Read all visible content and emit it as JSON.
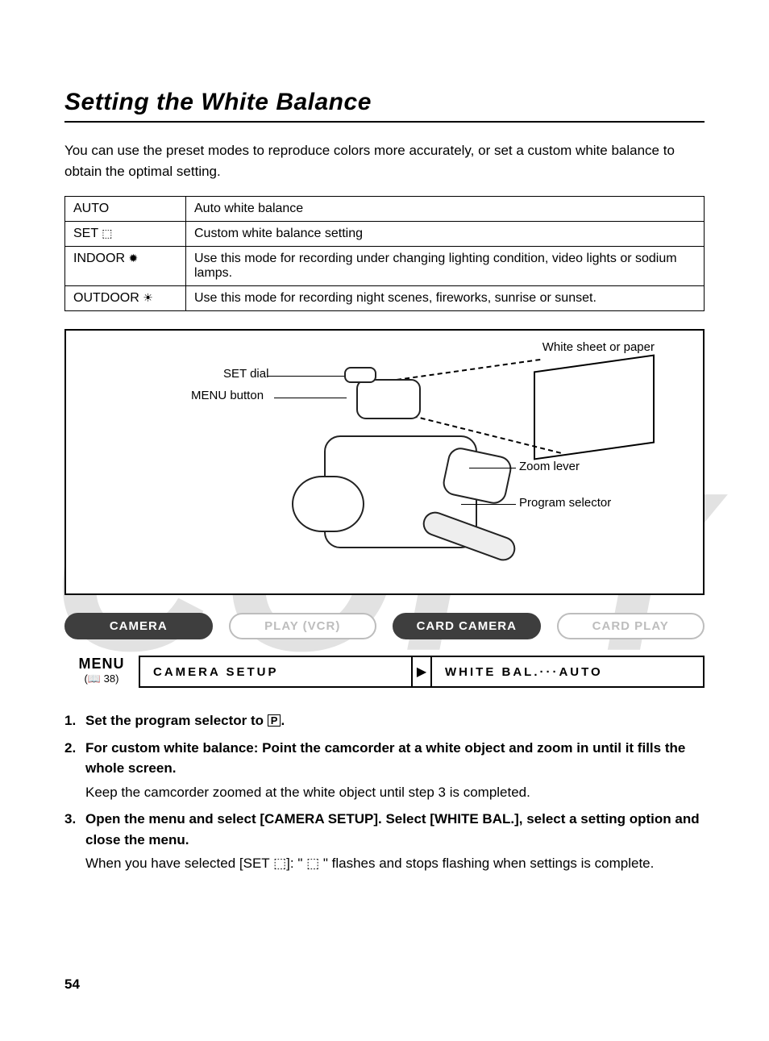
{
  "title": "Setting the White Balance",
  "intro": "You can use the preset modes to reproduce colors more accurately, or set a custom white balance to obtain the optimal setting.",
  "watermark": "COPY",
  "page_number": "54",
  "modes_table": {
    "rows": [
      {
        "label": "AUTO",
        "icon": "",
        "desc": "Auto white balance"
      },
      {
        "label": "SET",
        "icon": "⬚",
        "desc": "Custom white balance setting"
      },
      {
        "label": "INDOOR",
        "icon": "✹",
        "desc": "Use this mode for recording under changing lighting condition, video lights or sodium lamps."
      },
      {
        "label": "OUTDOOR",
        "icon": "☀",
        "desc": "Use this mode for recording night scenes, fireworks, sunrise or sunset."
      }
    ]
  },
  "illustration": {
    "labels": {
      "set_dial": "SET dial",
      "menu_button": "MENU button",
      "white_sheet": "White sheet or paper",
      "zoom_lever": "Zoom lever",
      "program_selector": "Program selector"
    }
  },
  "mode_pills": [
    {
      "text": "CAMERA",
      "variant": "dark"
    },
    {
      "text": "PLAY (VCR)",
      "variant": "light"
    },
    {
      "text": "CARD CAMERA",
      "variant": "dark"
    },
    {
      "text": "CARD PLAY",
      "variant": "light"
    }
  ],
  "menu_bar": {
    "menu_word": "MENU",
    "menu_ref": "(📖 38)",
    "left": "CAMERA SETUP",
    "right": "WHITE BAL.···AUTO"
  },
  "steps": [
    {
      "head_pre": "Set the program selector to ",
      "head_icon": "P",
      "head_post": ".",
      "sub": ""
    },
    {
      "head_pre": "For custom white balance: Point the camcorder at a white object and zoom in until it fills the whole screen.",
      "head_icon": "",
      "head_post": "",
      "sub": "Keep the camcorder zoomed at the white object until step 3 is completed."
    },
    {
      "head_pre": "Open the menu and select [CAMERA SETUP]. Select [WHITE BAL.], select a setting option and close the menu.",
      "head_icon": "",
      "head_post": "",
      "sub": "When you have selected [SET ⬚]: \" ⬚ \" flashes and stops flashing when settings is complete."
    }
  ]
}
